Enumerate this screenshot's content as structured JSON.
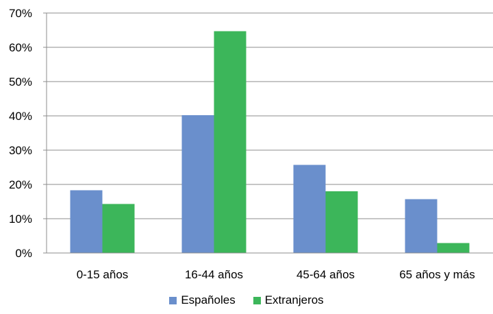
{
  "chart_data": {
    "type": "bar",
    "categories": [
      "0-15 años",
      "16-44 años",
      "45-64 años",
      "65 años y más"
    ],
    "series": [
      {
        "name": "Españoles",
        "values": [
          18.3,
          40.2,
          25.7,
          15.7
        ],
        "color": "#6a8fcc"
      },
      {
        "name": "Extranjeros",
        "values": [
          14.3,
          64.7,
          18.0,
          2.9
        ],
        "color": "#3cb65a"
      }
    ],
    "ylim": [
      0,
      70
    ],
    "yticks": [
      "0%",
      "10%",
      "20%",
      "30%",
      "40%",
      "50%",
      "60%",
      "70%"
    ],
    "grid": true,
    "legend": "bottom"
  }
}
